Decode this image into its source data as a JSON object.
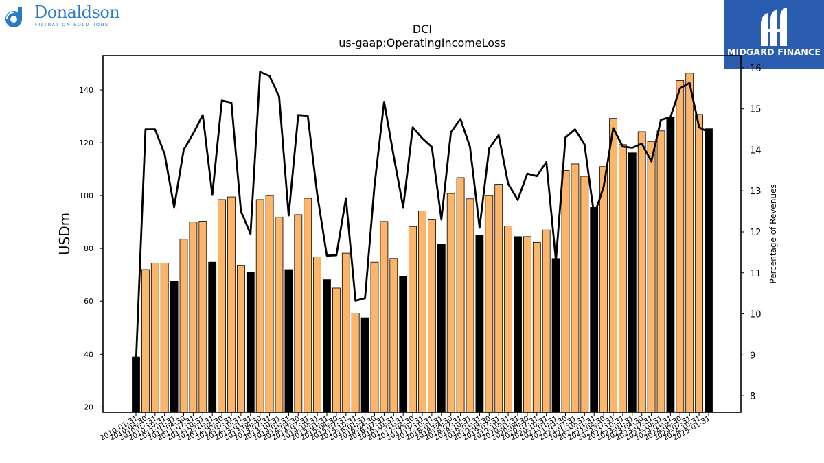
{
  "logo_left": {
    "name": "Donaldson",
    "tag": "FILTRATION SOLUTIONS"
  },
  "logo_right": {
    "name": "MIDGARD FINANCE"
  },
  "colors": {
    "quarter_bar": "#fdb56a",
    "fiscal_year_bar": "#000000",
    "line": "#000000",
    "brand_blue": "#2a7bc6",
    "panel_blue": "#2a5db0"
  },
  "chart_data": {
    "type": "bar",
    "title": "DCI",
    "subtitle": "us-gaap:OperatingIncomeLoss",
    "ylabel": "USDm",
    "y2label": "Percentage of Revenues",
    "ylim": [
      18,
      153
    ],
    "y2lim": [
      7.6,
      16.3
    ],
    "yticks": [
      20,
      40,
      60,
      80,
      100,
      120,
      140
    ],
    "y2ticks": [
      8,
      9,
      10,
      11,
      12,
      13,
      14,
      15,
      16
    ],
    "grid": false,
    "legend": "none",
    "categories": [
      "2010-01-31",
      "2010-04-30",
      "2010-07-31",
      "2010-10-31",
      "2011-01-31",
      "2011-04-30",
      "2011-07-31",
      "2011-10-31",
      "2012-01-31",
      "2012-04-30",
      "2012-07-31",
      "2012-10-31",
      "2013-01-31",
      "2013-04-30",
      "2013-07-31",
      "2013-10-31",
      "2014-01-31",
      "2014-04-30",
      "2014-07-31",
      "2014-10-31",
      "2015-01-31",
      "2015-04-30",
      "2015-07-31",
      "2015-10-31",
      "2016-01-31",
      "2016-04-30",
      "2016-07-31",
      "2016-10-31",
      "2017-01-31",
      "2017-04-30",
      "2017-07-31",
      "2017-10-31",
      "2018-01-31",
      "2018-04-30",
      "2018-07-31",
      "2018-10-31",
      "2019-01-31",
      "2019-04-30",
      "2019-07-31",
      "2019-10-31",
      "2020-01-31",
      "2020-04-30",
      "2020-07-31",
      "2020-10-31",
      "2021-01-31",
      "2021-04-30",
      "2021-07-31",
      "2021-10-31",
      "2022-01-31",
      "2022-04-30",
      "2022-07-31",
      "2022-10-31",
      "2023-01-31",
      "2023-04-30",
      "2023-07-31",
      "2023-10-31",
      "2024-01-31",
      "2024-04-30",
      "2024-07-31",
      "2024-10-31",
      "2025-01-31"
    ],
    "tick_labels_visible": [
      "2010-01-31",
      "2010-04-30",
      "2010-07-31",
      "2010-10-31",
      "2011-01-31",
      "2011-04-30",
      "2011-07-31",
      "2011-10-31",
      "2012-01-31",
      "2012-04-30",
      "2012-07-31",
      "2012-10-31",
      "2013-01-31",
      "2013-04-30",
      "2013-07-31",
      "2013-10-31",
      "2014-01-31",
      "2014-04-30",
      "2014-07-31",
      "2014-10-31",
      "2015-01-31",
      "2015-04-30",
      "2015-07-31",
      "2015-10-31",
      "2016-01-31",
      "2016-04-30",
      "2016-07-31",
      "2016-10-31",
      "2017-01-31",
      "2017-04-30",
      "2017-07-31",
      "2017-10-31",
      "2018-01-31",
      "2018-04-30",
      "2018-07-31",
      "2018-10-31",
      "2019-01-31",
      "2019-04-30",
      "2019-07-31",
      "2019-10-31",
      "2020-01-31",
      "2020-04-30",
      "2020-07-31",
      "2020-10-31",
      "2021-01-31",
      "2021-04-30",
      "2021-07-31",
      "2021-10-31",
      "2022-01-31",
      "2022-04-30",
      "2022-07-31",
      "2022-10-31",
      "2023-01-31",
      "2023-04-30",
      "2023-07-31",
      "2023-10-31",
      "2024-01-31",
      "2024-04-30",
      "2024-07-31",
      "2024-10-31",
      "2025-01-31"
    ],
    "fiscal_year_flags": [
      1,
      0,
      0,
      0,
      1,
      0,
      0,
      0,
      1,
      0,
      0,
      0,
      1,
      0,
      0,
      0,
      1,
      0,
      0,
      0,
      1,
      0,
      0,
      0,
      1,
      0,
      0,
      0,
      1,
      0,
      0,
      0,
      1,
      0,
      0,
      0,
      1,
      0,
      0,
      0,
      1,
      0,
      0,
      0,
      1,
      0,
      0,
      0,
      1,
      0,
      0,
      0,
      1,
      0,
      0,
      0,
      1,
      0,
      0,
      0,
      1
    ],
    "series": [
      {
        "values": [
          39,
          72,
          74.5,
          74.5,
          67.5,
          83.5,
          90,
          90.3,
          74.8,
          98.5,
          99.5,
          73.5,
          71,
          98.5,
          100,
          91.8,
          72,
          92.8,
          99,
          76.8,
          68.2,
          65,
          78.2,
          55.5,
          53.8,
          74.8,
          90.2,
          76.2,
          69.3,
          88.3,
          94.2,
          90.8,
          81.5,
          100.8,
          106.8,
          98.8,
          85,
          100,
          104.3,
          88.5,
          84.5,
          84.5,
          82.3,
          87,
          76.2,
          109.5,
          112,
          107.3,
          95.5,
          111,
          129.2,
          119.3,
          116.2,
          124.2,
          120.5,
          124.5,
          129.8,
          143.5,
          146.3,
          130.7,
          125.3
        ]
      },
      {
        "axis": "right",
        "values": [
          8.8,
          14.5,
          14.5,
          13.9,
          12.6,
          14.0,
          14.4,
          14.85,
          12.9,
          15.2,
          15.15,
          12.5,
          11.95,
          15.9,
          15.8,
          15.3,
          12.4,
          14.85,
          14.83,
          12.9,
          11.42,
          11.43,
          12.82,
          10.32,
          10.38,
          13.15,
          15.17,
          13.85,
          12.6,
          14.55,
          14.28,
          14.07,
          12.3,
          14.43,
          14.75,
          14.07,
          12.1,
          14.03,
          14.36,
          13.17,
          12.78,
          13.42,
          13.36,
          13.7,
          11.3,
          14.3,
          14.5,
          14.13,
          12.4,
          13.1,
          14.53,
          14.08,
          14.05,
          14.15,
          13.72,
          14.73,
          14.8,
          15.5,
          15.63,
          14.55,
          14.43
        ]
      }
    ]
  }
}
